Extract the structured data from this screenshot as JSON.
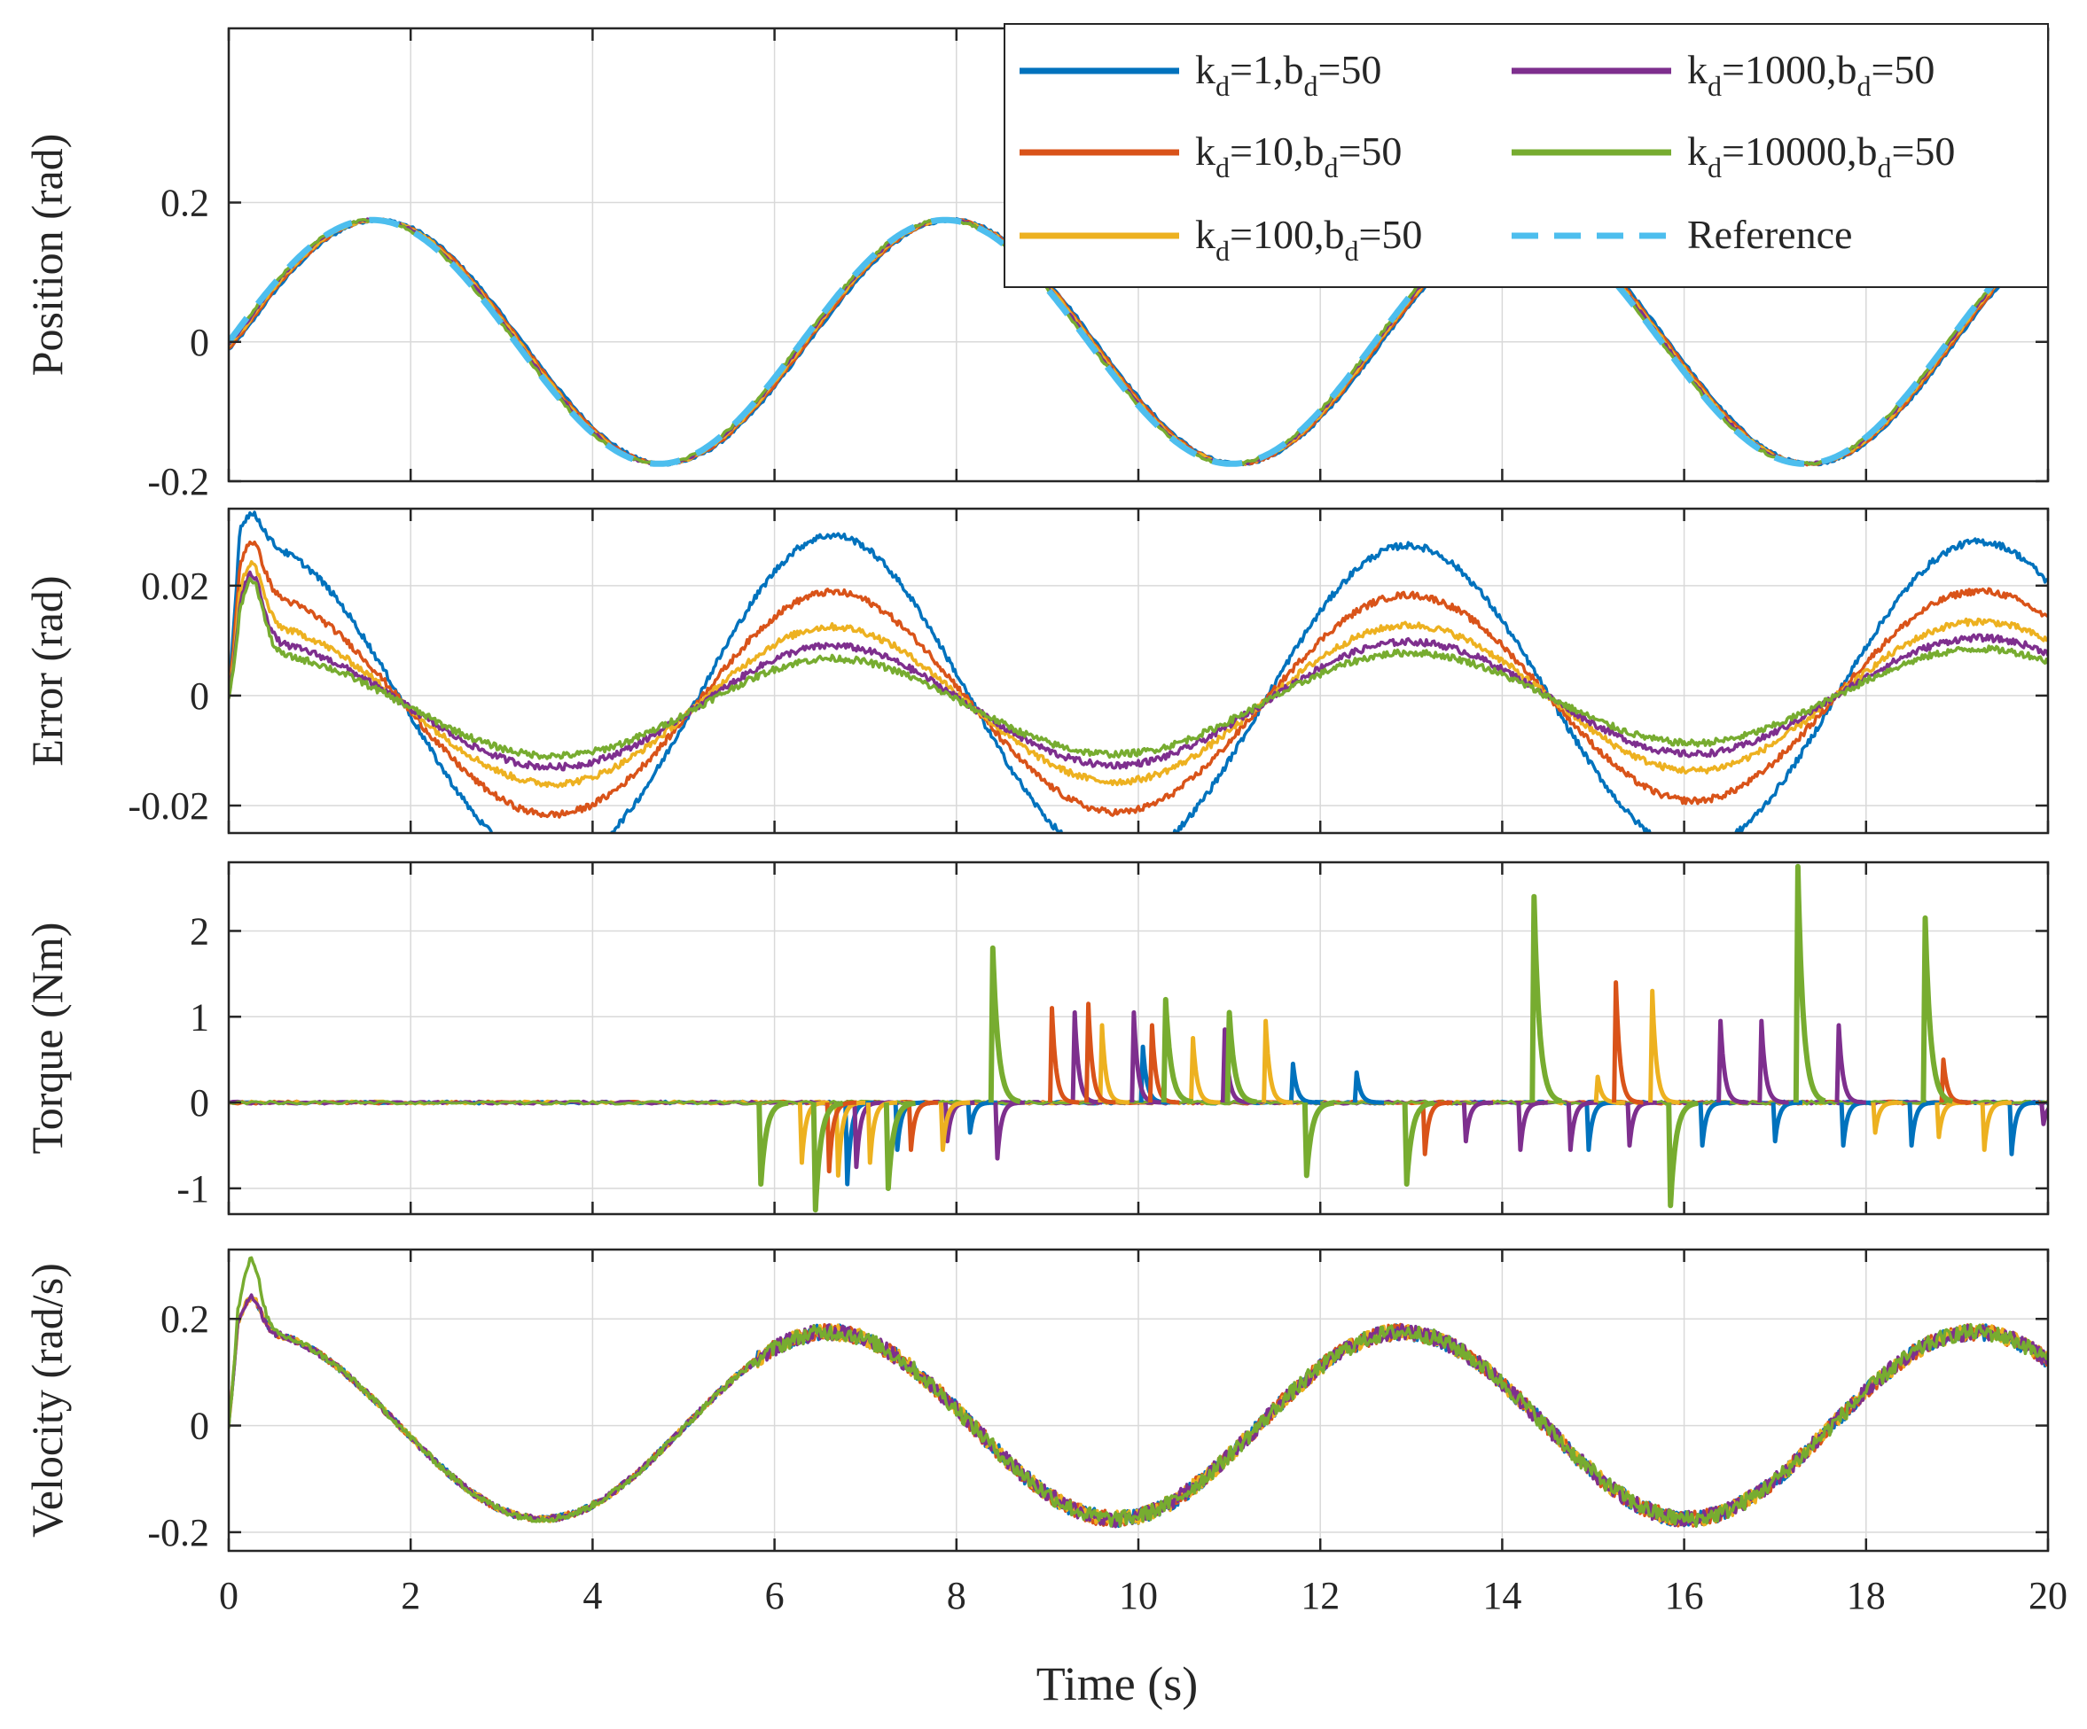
{
  "chart_data": {
    "type": "line",
    "xlabel": "Time (s)",
    "xlim": [
      0,
      20
    ],
    "xticks": [
      0,
      2,
      4,
      6,
      8,
      10,
      12,
      14,
      16,
      18,
      20
    ],
    "series_legend": [
      {
        "key": "k1",
        "k": "1",
        "b": "50",
        "color": "#0072BD",
        "style": "solid"
      },
      {
        "key": "k10",
        "k": "10",
        "b": "50",
        "color": "#D95319",
        "style": "solid"
      },
      {
        "key": "k100",
        "k": "100",
        "b": "50",
        "color": "#EDB120",
        "style": "solid"
      },
      {
        "key": "k1000",
        "k": "1000",
        "b": "50",
        "color": "#7E2F8E",
        "style": "solid"
      },
      {
        "key": "k10000",
        "k": "10000",
        "b": "50",
        "color": "#77AC30",
        "style": "solid"
      },
      {
        "key": "ref",
        "label": "Reference",
        "color": "#4DBEEE",
        "style": "dashed"
      }
    ],
    "legend_position": "top-right",
    "panels": [
      {
        "id": "position",
        "ylabel": "Position (rad)",
        "ylim": [
          -0.2,
          0.45
        ],
        "yticks": [
          {
            "v": -0.2,
            "t": "-0.2"
          },
          {
            "v": 0,
            "t": "0"
          },
          {
            "v": 0.2,
            "t": "0.2"
          }
        ],
        "model": "sine",
        "amplitude": 0.175,
        "period": 6.3
      },
      {
        "id": "error",
        "ylabel": "Error (rad)",
        "ylim": [
          -0.025,
          0.034
        ],
        "yticks": [
          {
            "v": -0.02,
            "t": "-0.02"
          },
          {
            "v": 0,
            "t": "0"
          },
          {
            "v": 0.02,
            "t": "0.02"
          }
        ],
        "model": "error",
        "peak_amplitudes": {
          "k1": 0.028,
          "k10": 0.019,
          "k100": 0.0135,
          "k1000": 0.0105,
          "k10000": 0.0085
        },
        "initial_peaks": {
          "k1": 0.033,
          "k10": 0.028,
          "k100": 0.024,
          "k1000": 0.022,
          "k10000": 0.021
        }
      },
      {
        "id": "torque",
        "ylabel": "Torque (Nm)",
        "ylim": [
          -1.3,
          2.8
        ],
        "yticks": [
          {
            "v": -1,
            "t": "-1"
          },
          {
            "v": 0,
            "t": "0"
          },
          {
            "v": 1,
            "t": "1"
          },
          {
            "v": 2,
            "t": "2"
          }
        ],
        "model": "spikes",
        "spikes": {
          "k10000": [
            [
              5.85,
              -0.95
            ],
            [
              6.45,
              -1.25
            ],
            [
              7.25,
              -1.0
            ],
            [
              8.4,
              1.8
            ],
            [
              10.3,
              1.2
            ],
            [
              11.0,
              1.05
            ],
            [
              11.85,
              -0.85
            ],
            [
              12.95,
              -0.95
            ],
            [
              14.35,
              2.4
            ],
            [
              15.85,
              -1.2
            ],
            [
              17.25,
              2.75
            ],
            [
              18.65,
              2.15
            ]
          ],
          "k10": [
            [
              6.6,
              -0.8
            ],
            [
              7.5,
              -0.55
            ],
            [
              9.05,
              1.1
            ],
            [
              9.45,
              1.15
            ],
            [
              10.15,
              0.9
            ],
            [
              13.15,
              -0.6
            ],
            [
              15.25,
              1.4
            ],
            [
              18.85,
              0.5
            ]
          ],
          "k100": [
            [
              6.3,
              -0.7
            ],
            [
              6.7,
              -0.85
            ],
            [
              7.05,
              -0.7
            ],
            [
              7.85,
              -0.55
            ],
            [
              9.6,
              0.9
            ],
            [
              10.6,
              0.75
            ],
            [
              11.4,
              0.95
            ],
            [
              15.05,
              0.3
            ],
            [
              15.65,
              1.3
            ],
            [
              18.1,
              -0.35
            ],
            [
              18.8,
              -0.4
            ],
            [
              19.3,
              -0.55
            ]
          ],
          "k1000": [
            [
              6.9,
              -0.75
            ],
            [
              7.9,
              -0.45
            ],
            [
              8.45,
              -0.65
            ],
            [
              9.3,
              1.05
            ],
            [
              9.95,
              1.05
            ],
            [
              10.95,
              0.85
            ],
            [
              13.6,
              -0.45
            ],
            [
              14.2,
              -0.55
            ],
            [
              14.75,
              -0.55
            ],
            [
              15.4,
              -0.5
            ],
            [
              16.4,
              0.95
            ],
            [
              16.85,
              0.95
            ],
            [
              17.7,
              0.9
            ],
            [
              19.95,
              -0.25
            ]
          ],
          "k1": [
            [
              6.8,
              -0.95
            ],
            [
              7.35,
              -0.55
            ],
            [
              8.15,
              -0.35
            ],
            [
              10.05,
              0.65
            ],
            [
              11.7,
              0.45
            ],
            [
              12.4,
              0.35
            ],
            [
              14.95,
              -0.55
            ],
            [
              16.2,
              -0.5
            ],
            [
              17.0,
              -0.45
            ],
            [
              17.75,
              -0.5
            ],
            [
              18.5,
              -0.5
            ],
            [
              19.6,
              -0.6
            ]
          ]
        }
      },
      {
        "id": "velocity",
        "ylabel": "Velocity (rad/s)",
        "ylim": [
          -0.235,
          0.33
        ],
        "yticks": [
          {
            "v": -0.2,
            "t": "-0.2"
          },
          {
            "v": 0,
            "t": "0"
          },
          {
            "v": 0.2,
            "t": "0.2"
          }
        ],
        "model": "cosine",
        "amplitude": 0.175,
        "period": 6.3,
        "initial_peak": 0.31
      }
    ]
  }
}
